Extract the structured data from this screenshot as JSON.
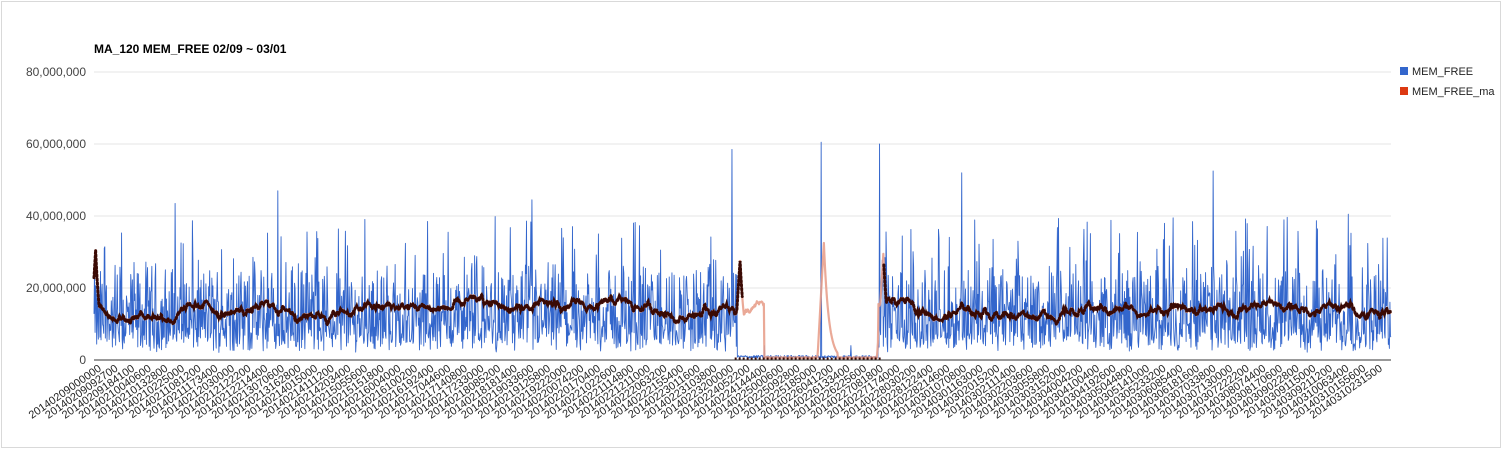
{
  "chart_data": {
    "type": "line",
    "title": "MA_120 MEM_FREE 02/09 ~ 03/01",
    "xlabel": "",
    "ylabel": "",
    "ylim": [
      0,
      80000000
    ],
    "yticks": [
      {
        "value": 0,
        "label": "0"
      },
      {
        "value": 20000000,
        "label": "20,000,000"
      },
      {
        "value": 40000000,
        "label": "40,000,000"
      },
      {
        "value": 60000000,
        "label": "60,000,000"
      },
      {
        "value": 80000000,
        "label": "80,000,000"
      }
    ],
    "grid": true,
    "legend_position": "right",
    "x_tick_labels": [
      "20140209000000",
      "20140209092700",
      "20140209184100",
      "20140210040600",
      "20140210132800",
      "20140210225000",
      "20140211081200",
      "20140211173400",
      "20140212030000",
      "20140212122200",
      "20140212214400",
      "20140213070600",
      "20140213162800",
      "20140214015000",
      "20140214111200",
      "20140214203400",
      "20140215055600",
      "20140215151800",
      "20140216004000",
      "20140216100200",
      "20140216192400",
      "20140217044600",
      "20140217140800",
      "20140217233000",
      "20140218085200",
      "20140218181400",
      "20140219033600",
      "20140219125800",
      "20140219222000",
      "20140220074200",
      "20140220170400",
      "20140221022600",
      "20140221114800",
      "20140221211000",
      "20140222063200",
      "20140222155400",
      "20140223011600",
      "20140223103800",
      "20140223200000",
      "20140224052200",
      "20140224144400",
      "20140225000600",
      "20140225092800",
      "20140225185000",
      "20140226041200",
      "20140226133400",
      "20140226225600",
      "20140227081800",
      "20140227174000",
      "20140228030200",
      "20140228122400",
      "20140228214600",
      "20140301070800",
      "20140301163000",
      "20140302015200",
      "20140302111400",
      "20140302203600",
      "20140303055800",
      "20140303152000",
      "20140304004200",
      "20140304100400",
      "20140304192600",
      "20140305044800",
      "20140305141000",
      "20140305233200",
      "20140306085400",
      "20140306181600",
      "20140307033800",
      "20140307130000",
      "20140307222200",
      "20140308074400",
      "20140308170600",
      "20140309022800",
      "20140309115000",
      "20140309211200",
      "20140310063400",
      "20140310155600",
      "20140310231500"
    ],
    "series": [
      {
        "name": "MEM_FREE",
        "color": "#3366cc",
        "point_count": 2400,
        "typical_range": [
          0,
          35000000
        ],
        "mean_level": 14000000,
        "spikes": [
          {
            "x_index": 1180,
            "value": 58500000
          },
          {
            "x_index": 1240,
            "value": 4000000
          },
          {
            "x_index": 1345,
            "value": 60500000
          },
          {
            "x_index": 1400,
            "value": 4000000
          },
          {
            "x_index": 1453,
            "value": 60000000
          },
          {
            "x_index": 2070,
            "value": 52500000
          },
          {
            "x_index": 1605,
            "value": 52000000
          },
          {
            "x_index": 340,
            "value": 47000000
          },
          {
            "x_index": 150,
            "value": 43500000
          },
          {
            "x_index": 810,
            "value": 44500000
          },
          {
            "x_index": 2320,
            "value": 40500000
          }
        ],
        "low_period": {
          "from_index": 1190,
          "to_index": 1450,
          "value": 500000
        }
      },
      {
        "name": "MEM_FREE_ma",
        "color": "#dc3912",
        "point_count": 2400,
        "mean_level": 14000000,
        "typical_range": [
          8000000,
          24000000
        ],
        "peaks": [
          {
            "x_index": 3,
            "value": 30500000
          },
          {
            "x_index": 1195,
            "value": 27500000
          },
          {
            "x_index": 1350,
            "value": 32500000
          },
          {
            "x_index": 1460,
            "value": 29500000
          }
        ],
        "low_period": {
          "from_index": 1240,
          "to_index": 1450,
          "value": 500000
        }
      }
    ]
  }
}
